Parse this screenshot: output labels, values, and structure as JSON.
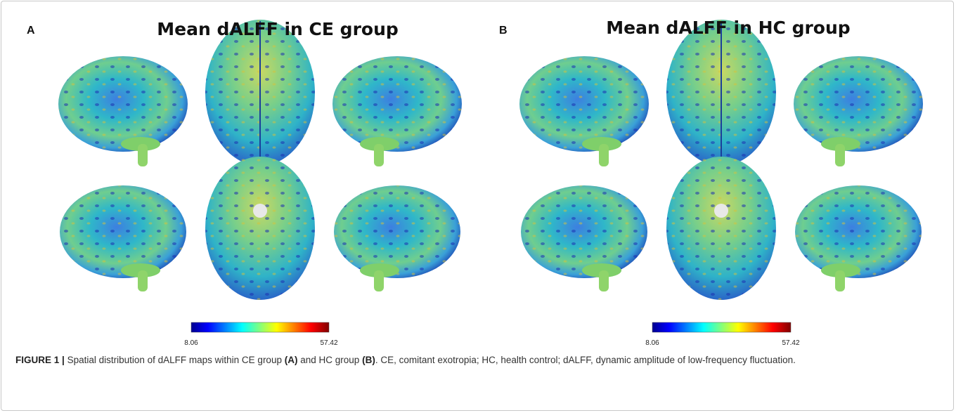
{
  "panels": [
    {
      "label": "A",
      "title": "Mean dALFF in CE group",
      "colorbar": {
        "min": 8.06,
        "max": 57.42
      }
    },
    {
      "label": "B",
      "title": "Mean dALFF in HC group",
      "colorbar": {
        "min": 8.06,
        "max": 57.42
      }
    }
  ],
  "caption": {
    "label": "FIGURE 1 |",
    "parts": [
      "Spatial distribution of dALFF maps within CE group",
      "(A)",
      "and HC group",
      "(B)",
      ". CE, comitant exotropia; HC, health control; dALFF, dynamic amplitude of low-frequency fluctuation."
    ]
  }
}
